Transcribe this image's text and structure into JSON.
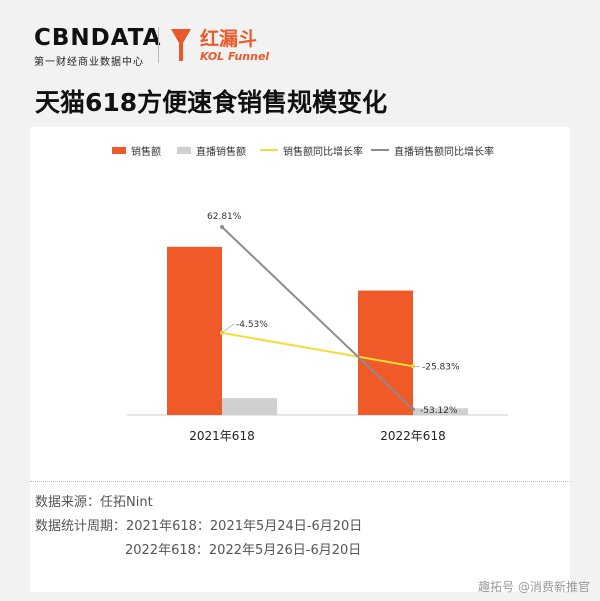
{
  "header": {
    "brand_name": "CBNDATA",
    "brand_sub": "第一财经商业数据中心",
    "kol_title": "红漏斗",
    "kol_sub": "KOL Funnel"
  },
  "title": "天猫618方便速食销售规模变化",
  "legend": {
    "sales": "销售额",
    "live_sales": "直播销售额",
    "sales_yoy": "销售额同比增长率",
    "live_yoy": "直播销售额同比增长率"
  },
  "colors": {
    "sales": "#f05a28",
    "live_sales": "#d0d0d0",
    "sales_yoy": "#f2dc3a",
    "live_yoy": "#8c8c8c"
  },
  "chart_data": {
    "type": "bar",
    "categories": [
      "2021年618",
      "2022年618"
    ],
    "series": [
      {
        "name": "销售额",
        "type": "bar",
        "values": [
          100,
          74
        ]
      },
      {
        "name": "直播销售额",
        "type": "bar",
        "values": [
          10,
          4
        ]
      },
      {
        "name": "销售额同比增长率",
        "type": "line",
        "values": [
          -4.53,
          -25.83
        ],
        "labels": [
          "-4.53%",
          "-25.83%"
        ]
      },
      {
        "name": "直播销售额同比增长率",
        "type": "line",
        "values": [
          62.81,
          -53.12
        ],
        "labels": [
          "62.81%",
          "-53.12%"
        ]
      }
    ],
    "bar_ylim": [
      0,
      110
    ],
    "line_ylim": [
      -60,
      80
    ],
    "grid": false,
    "legend_position": "top"
  },
  "footer": {
    "source": "数据来源：任拓Nint",
    "period_1": "数据统计周期：2021年618：2021年5月24日-6月20日",
    "period_2": "2022年618：2022年5月26日-6月20日",
    "corner": "趣拓号 @消费新推官"
  }
}
